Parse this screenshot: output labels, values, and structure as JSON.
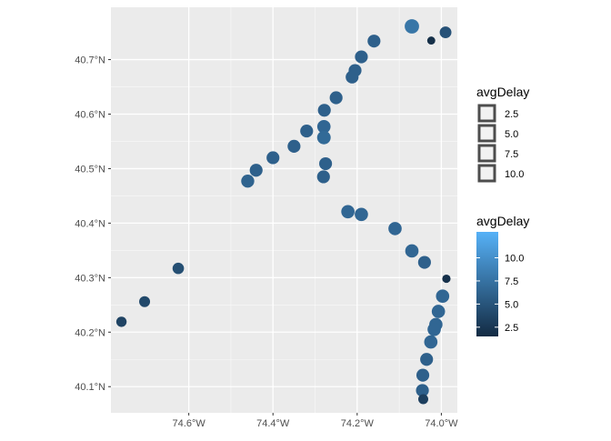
{
  "chart_data": {
    "type": "scatter",
    "title": "",
    "xlabel": "",
    "ylabel": "",
    "xlim": [
      -74.785,
      -73.962
    ],
    "ylim": [
      40.052,
      40.796
    ],
    "x_ticks": [
      -74.6,
      -74.4,
      -74.2,
      -74.0
    ],
    "x_tick_labels": [
      "74.6°W",
      "74.4°W",
      "74.2°W",
      "74.0°W"
    ],
    "y_ticks": [
      40.1,
      40.2,
      40.3,
      40.4,
      40.5,
      40.6,
      40.7
    ],
    "y_tick_labels": [
      "40.1°N",
      "40.2°N",
      "40.3°N",
      "40.4°N",
      "40.5°N",
      "40.6°N",
      "40.7°N"
    ],
    "grid": true,
    "points": [
      {
        "lon": -74.07,
        "lat": 40.761,
        "avgDelay": 7.8
      },
      {
        "lon": -74.024,
        "lat": 40.735,
        "avgDelay": 1.8
      },
      {
        "lon": -73.99,
        "lat": 40.75,
        "avgDelay": 4.8
      },
      {
        "lon": -74.16,
        "lat": 40.734,
        "avgDelay": 6.0
      },
      {
        "lon": -74.19,
        "lat": 40.705,
        "avgDelay": 6.0
      },
      {
        "lon": -74.205,
        "lat": 40.68,
        "avgDelay": 6.0
      },
      {
        "lon": -74.212,
        "lat": 40.668,
        "avgDelay": 6.0
      },
      {
        "lon": -74.25,
        "lat": 40.63,
        "avgDelay": 6.0
      },
      {
        "lon": -74.278,
        "lat": 40.607,
        "avgDelay": 6.0
      },
      {
        "lon": -74.279,
        "lat": 40.577,
        "avgDelay": 6.5
      },
      {
        "lon": -74.32,
        "lat": 40.569,
        "avgDelay": 6.0
      },
      {
        "lon": -74.279,
        "lat": 40.557,
        "avgDelay": 6.8
      },
      {
        "lon": -74.35,
        "lat": 40.541,
        "avgDelay": 6.0
      },
      {
        "lon": -74.4,
        "lat": 40.52,
        "avgDelay": 6.0
      },
      {
        "lon": -74.275,
        "lat": 40.509,
        "avgDelay": 6.0
      },
      {
        "lon": -74.44,
        "lat": 40.497,
        "avgDelay": 6.0
      },
      {
        "lon": -74.28,
        "lat": 40.485,
        "avgDelay": 6.0
      },
      {
        "lon": -74.46,
        "lat": 40.477,
        "avgDelay": 6.2
      },
      {
        "lon": -74.222,
        "lat": 40.421,
        "avgDelay": 6.5
      },
      {
        "lon": -74.19,
        "lat": 40.416,
        "avgDelay": 6.5
      },
      {
        "lon": -74.11,
        "lat": 40.39,
        "avgDelay": 6.5
      },
      {
        "lon": -74.07,
        "lat": 40.349,
        "avgDelay": 6.5
      },
      {
        "lon": -74.04,
        "lat": 40.328,
        "avgDelay": 6.0
      },
      {
        "lon": -73.988,
        "lat": 40.298,
        "avgDelay": 2.0
      },
      {
        "lon": -73.997,
        "lat": 40.266,
        "avgDelay": 6.5
      },
      {
        "lon": -74.007,
        "lat": 40.238,
        "avgDelay": 6.5
      },
      {
        "lon": -74.013,
        "lat": 40.214,
        "avgDelay": 6.5
      },
      {
        "lon": -74.017,
        "lat": 40.205,
        "avgDelay": 6.5
      },
      {
        "lon": -74.025,
        "lat": 40.182,
        "avgDelay": 6.5
      },
      {
        "lon": -74.035,
        "lat": 40.15,
        "avgDelay": 6.0
      },
      {
        "lon": -74.044,
        "lat": 40.121,
        "avgDelay": 6.0
      },
      {
        "lon": -74.045,
        "lat": 40.093,
        "avgDelay": 6.0
      },
      {
        "lon": -74.043,
        "lat": 40.077,
        "avgDelay": 3.2
      },
      {
        "lon": -74.625,
        "lat": 40.317,
        "avgDelay": 4.5
      },
      {
        "lon": -74.705,
        "lat": 40.256,
        "avgDelay": 4.0
      },
      {
        "lon": -74.76,
        "lat": 40.219,
        "avgDelay": 3.5
      }
    ],
    "size_legend": {
      "title": "avgDelay",
      "values": [
        "2.5",
        "5.0",
        "7.5",
        "10.0"
      ]
    },
    "color_legend": {
      "title": "avgDelay",
      "ticks": [
        2.5,
        5.0,
        7.5,
        10.0
      ],
      "tick_labels": [
        "2.5",
        "5.0",
        "7.5",
        "10.0"
      ],
      "range": [
        1.5,
        12.8
      ],
      "low_color": "#132B43",
      "high_color": "#56B1F7"
    },
    "colors": {
      "panel_bg": "#EBEBEB",
      "grid": "#FFFFFF",
      "axis_text": "#4D4D4D",
      "legend_key_fill": "#F2F2F2",
      "legend_key_stroke": "#4D4D4D"
    }
  }
}
